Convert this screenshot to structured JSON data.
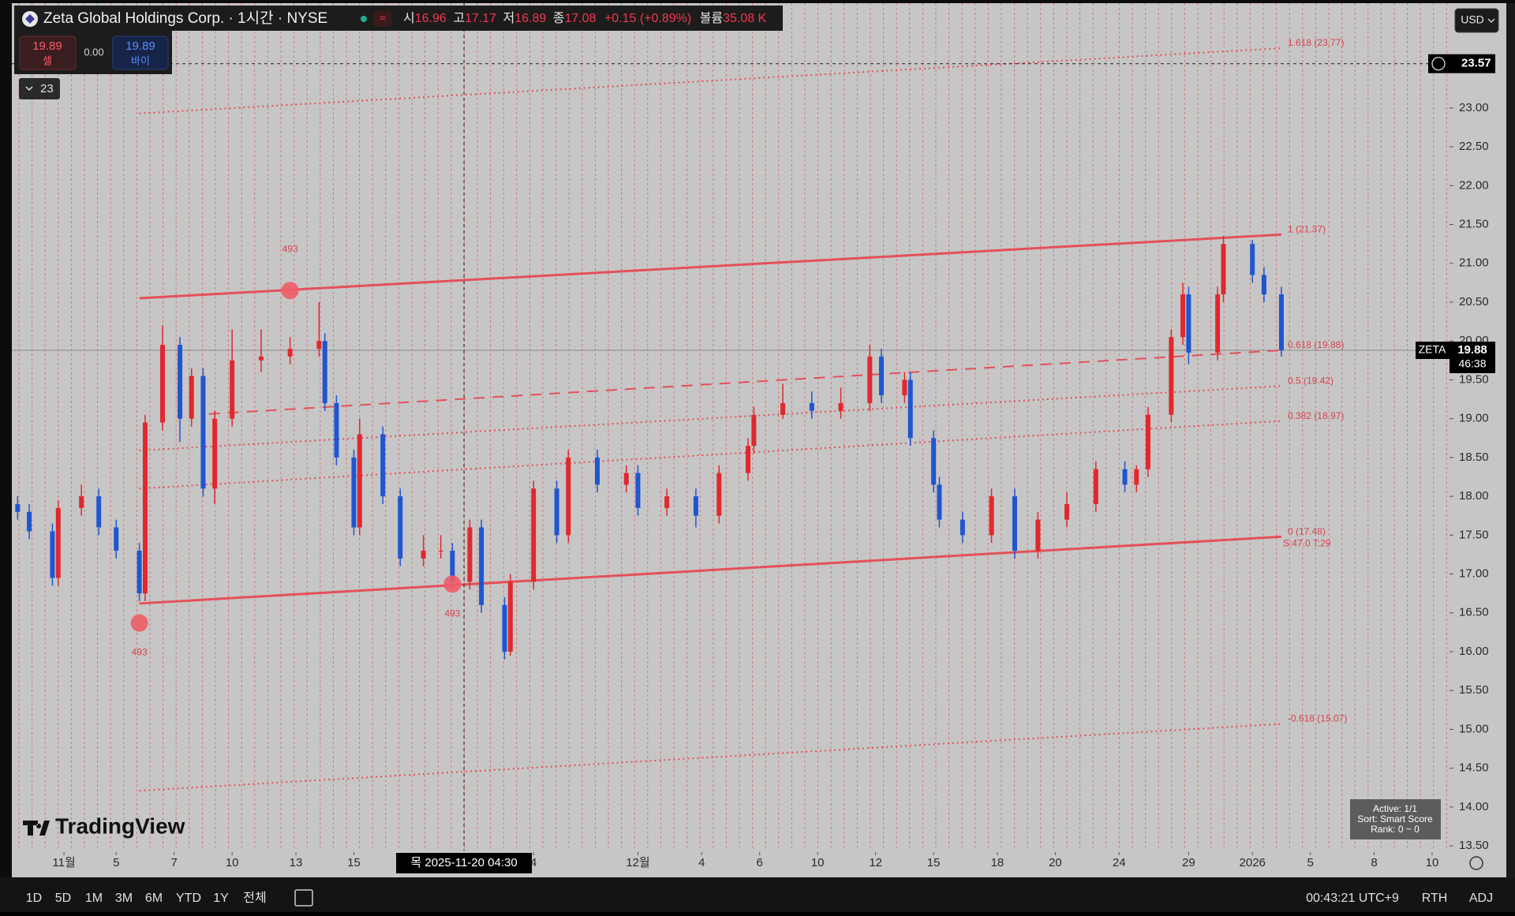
{
  "header": {
    "symbol_title": "Zeta Global Holdings Corp. · 1시간 · NYSE",
    "open_label": "시",
    "open": 16.96,
    "high_label": "고",
    "high": 17.17,
    "low_label": "저",
    "low": 16.89,
    "close_label": "종",
    "close": 17.08,
    "change": "+0.15 (+0.89%)",
    "volume_label": "볼륨",
    "volume": "35.08 K"
  },
  "trade": {
    "sell_price": 19.89,
    "sell_label": "셀",
    "spread": "0.00",
    "buy_price": 19.89,
    "buy_label": "바이"
  },
  "indicator_toggle": "23",
  "currency": "USD",
  "logo": "TradingView",
  "overlay_box": [
    "Active: 1/1",
    "Sort: Smart Score",
    "Rank: 0 ~ 0"
  ],
  "toolbar": {
    "ranges": [
      "1D",
      "5D",
      "1M",
      "3M",
      "6M",
      "YTD",
      "1Y",
      "전체"
    ],
    "clock": "00:43:21 UTC+9",
    "session": "RTH",
    "adjust": "ADJ"
  },
  "chart_data": {
    "type": "candlestick",
    "up_color": "#e0282e",
    "down_color": "#1f56d0",
    "x": [
      1,
      3,
      7,
      8,
      12,
      15,
      18,
      22,
      23,
      26,
      29,
      31,
      33,
      35,
      38,
      43,
      48,
      53,
      54,
      56,
      59,
      60,
      64,
      67,
      71,
      74,
      76,
      79,
      81,
      85,
      86,
      90,
      94,
      96,
      101,
      106,
      108,
      113,
      118,
      122,
      127,
      128,
      133,
      138,
      143,
      148,
      150,
      154,
      155,
      159,
      160,
      164,
      169,
      173,
      177,
      182,
      187,
      192,
      194,
      196,
      200,
      202,
      203,
      208,
      209,
      214,
      216,
      219
    ],
    "open": [
      17.9,
      17.8,
      17.55,
      16.95,
      17.85,
      18.0,
      17.6,
      17.3,
      16.75,
      18.95,
      19.95,
      19.0,
      19.55,
      18.1,
      19.0,
      19.75,
      19.8,
      19.9,
      20.0,
      19.2,
      18.5,
      17.6,
      18.8,
      18.0,
      17.2,
      17.3,
      17.3,
      16.9,
      17.6,
      16.6,
      16.0,
      16.9,
      18.1,
      17.5,
      18.5,
      18.15,
      18.3,
      17.85,
      18.0,
      17.75,
      18.3,
      18.65,
      19.05,
      19.2,
      19.1,
      19.2,
      19.8,
      19.3,
      19.5,
      18.75,
      18.15,
      17.7,
      17.5,
      18.0,
      17.3,
      17.7,
      17.9,
      18.35,
      18.15,
      18.35,
      19.05,
      20.05,
      20.6,
      19.85,
      20.6,
      21.25,
      20.85,
      20.6
    ],
    "high": [
      18.0,
      17.9,
      17.65,
      17.95,
      18.15,
      18.1,
      17.7,
      17.4,
      19.05,
      20.2,
      20.05,
      19.65,
      19.65,
      19.1,
      20.15,
      20.15,
      20.05,
      20.5,
      20.1,
      19.3,
      18.6,
      19.0,
      18.9,
      18.1,
      17.5,
      17.5,
      17.4,
      17.7,
      17.7,
      16.7,
      17.0,
      18.2,
      18.2,
      18.6,
      18.6,
      18.4,
      18.4,
      18.1,
      18.1,
      18.4,
      18.75,
      19.15,
      19.45,
      19.35,
      19.4,
      19.95,
      19.9,
      19.6,
      19.6,
      18.85,
      18.25,
      17.8,
      18.1,
      18.1,
      17.8,
      18.05,
      18.45,
      18.45,
      18.4,
      19.15,
      20.15,
      20.75,
      20.7,
      20.7,
      21.35,
      21.3,
      20.95,
      20.7
    ],
    "low": [
      17.7,
      17.45,
      16.85,
      16.85,
      17.75,
      17.5,
      17.2,
      16.65,
      16.65,
      18.85,
      18.7,
      18.9,
      18.0,
      17.9,
      18.9,
      19.6,
      19.7,
      19.8,
      19.1,
      18.4,
      17.5,
      17.5,
      17.9,
      17.1,
      17.1,
      17.2,
      16.8,
      16.8,
      16.5,
      15.9,
      15.95,
      16.8,
      17.4,
      17.4,
      18.05,
      18.05,
      17.75,
      17.75,
      17.6,
      17.65,
      18.2,
      18.55,
      19.0,
      19.0,
      19.0,
      19.1,
      19.2,
      19.2,
      18.65,
      18.05,
      17.6,
      17.4,
      17.4,
      17.2,
      17.2,
      17.6,
      17.8,
      18.05,
      18.05,
      18.25,
      18.95,
      19.95,
      19.7,
      19.75,
      20.5,
      20.75,
      20.5,
      19.8
    ],
    "close": [
      17.8,
      17.55,
      16.95,
      17.85,
      18.0,
      17.6,
      17.3,
      16.75,
      18.95,
      19.95,
      19.0,
      19.55,
      18.1,
      19.0,
      19.75,
      19.8,
      19.9,
      20.0,
      19.2,
      18.5,
      17.6,
      18.8,
      18.0,
      17.2,
      17.3,
      17.3,
      16.9,
      17.6,
      16.6,
      16.0,
      16.9,
      18.1,
      17.5,
      18.5,
      18.15,
      18.3,
      17.85,
      18.0,
      17.75,
      18.3,
      18.65,
      19.05,
      19.2,
      19.1,
      19.2,
      19.8,
      19.3,
      19.5,
      18.75,
      18.15,
      17.7,
      17.5,
      18.0,
      17.3,
      17.7,
      17.9,
      18.35,
      18.15,
      18.35,
      19.05,
      20.05,
      20.6,
      19.85,
      20.6,
      21.25,
      20.85,
      20.6,
      19.88
    ],
    "xlim": [
      0,
      248
    ],
    "xticks": [
      {
        "value": 9,
        "label": "11월"
      },
      {
        "value": 18,
        "label": "5"
      },
      {
        "value": 28,
        "label": "7"
      },
      {
        "value": 38,
        "label": "10"
      },
      {
        "value": 49,
        "label": "13"
      },
      {
        "value": 59,
        "label": "15"
      },
      {
        "value": 90,
        "label": "4"
      },
      {
        "value": 108,
        "label": "12월"
      },
      {
        "value": 119,
        "label": "4"
      },
      {
        "value": 129,
        "label": "6"
      },
      {
        "value": 139,
        "label": "10"
      },
      {
        "value": 149,
        "label": "12"
      },
      {
        "value": 159,
        "label": "15"
      },
      {
        "value": 170,
        "label": "18"
      },
      {
        "value": 180,
        "label": "20"
      },
      {
        "value": 191,
        "label": "24"
      },
      {
        "value": 203,
        "label": "29"
      },
      {
        "value": 214,
        "label": "2026"
      },
      {
        "value": 224,
        "label": "5"
      },
      {
        "value": 235,
        "label": "8"
      },
      {
        "value": 245,
        "label": "10"
      }
    ],
    "ylim": [
      13.44,
      24.39
    ],
    "yticks": [
      {
        "value": 13.5,
        "label": "13.50"
      },
      {
        "value": 14,
        "label": "14.00"
      },
      {
        "value": 14.5,
        "label": "14.50"
      },
      {
        "value": 15,
        "label": "15.00"
      },
      {
        "value": 15.5,
        "label": "15.50"
      },
      {
        "value": 16,
        "label": "16.00"
      },
      {
        "value": 16.5,
        "label": "16.50"
      },
      {
        "value": 17,
        "label": "17.00"
      },
      {
        "value": 17.5,
        "label": "17.50"
      },
      {
        "value": 18,
        "label": "18.00"
      },
      {
        "value": 18.5,
        "label": "18.50"
      },
      {
        "value": 19,
        "label": "19.00"
      },
      {
        "value": 19.5,
        "label": "19.50"
      },
      {
        "value": 20,
        "label": "20.00"
      },
      {
        "value": 20.5,
        "label": "20.50"
      },
      {
        "value": 21,
        "label": "21.00"
      },
      {
        "value": 21.5,
        "label": "21.50"
      },
      {
        "value": 22,
        "label": "22.00"
      },
      {
        "value": 22.5,
        "label": "22.50"
      },
      {
        "value": 23,
        "label": "23.00"
      }
    ],
    "fib_levels": [
      {
        "label": "1.618 (23.77)",
        "x": [
          22,
          219
        ],
        "start": 22.93,
        "value": 23.77,
        "style": "dotted"
      },
      {
        "label": "1 (21.37)",
        "x": [
          22,
          219
        ],
        "start": 20.55,
        "value": 21.37,
        "style": "solid"
      },
      {
        "label": "0.618 (19.88)",
        "x": [
          34,
          219
        ],
        "start": 19.06,
        "value": 19.88,
        "style": "dashed"
      },
      {
        "label": "0.5 (19.42)",
        "x": [
          22,
          219
        ],
        "start": 18.59,
        "value": 19.42,
        "style": "dotted"
      },
      {
        "label": "0.382 (18.97)",
        "x": [
          22,
          219
        ],
        "start": 18.1,
        "value": 18.97,
        "style": "dotted"
      },
      {
        "label": "0 (17.48)",
        "x": [
          22,
          219
        ],
        "start": 16.62,
        "value": 17.48,
        "style": "solid"
      },
      {
        "label": "-0.618 (15.07)",
        "x": [
          22,
          219
        ],
        "start": 14.21,
        "value": 15.07,
        "style": "dotted"
      }
    ],
    "fib_stats": "S:47.0 T:29",
    "markers": [
      {
        "x": 22,
        "value": 16.37,
        "label": "493",
        "label_position": "below"
      },
      {
        "x": 48,
        "value": 20.65,
        "label": "493",
        "label_position": "above"
      },
      {
        "x": 76,
        "value": 16.87,
        "label": "493",
        "label_position": "below"
      }
    ],
    "crosshair": {
      "x": 78,
      "x_label": "목 2025-11-20  04:30",
      "y": 23.57
    },
    "last_price": {
      "symbol": "ZETA",
      "value": 19.88,
      "countdown": "46:38"
    }
  }
}
